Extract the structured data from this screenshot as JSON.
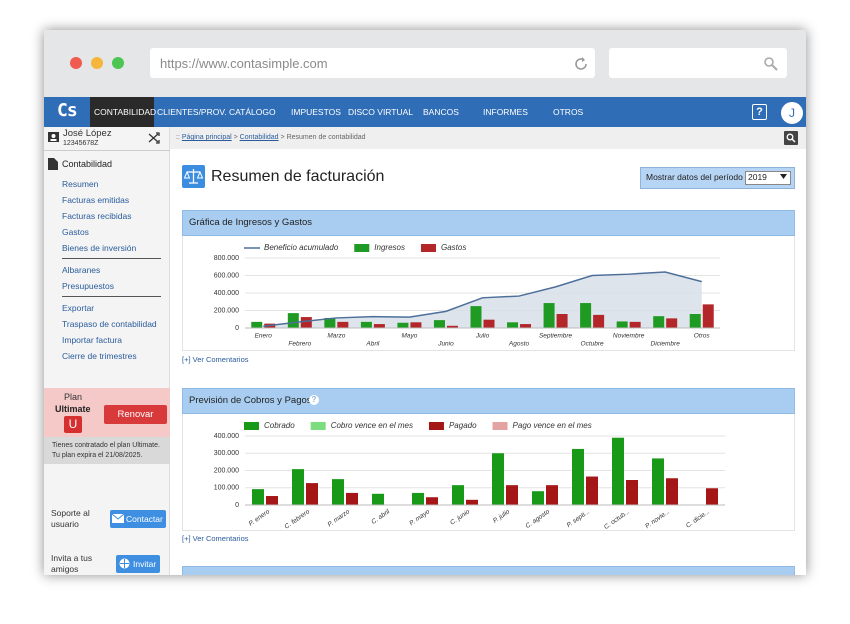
{
  "browser": {
    "url": "https://www.contasimple.com"
  },
  "nav": {
    "logo": "Cs",
    "items": [
      "CONTABILIDAD",
      "CLIENTES/PROV.",
      "CATÁLOGO",
      "IMPUESTOS",
      "DISCO VIRTUAL",
      "BANCOS",
      "INFORMES",
      "OTROS"
    ],
    "help": "?",
    "avatar": "J"
  },
  "sidebar": {
    "user": {
      "name": "José López",
      "id": "12345678Z"
    },
    "section": "Contabilidad",
    "groups": [
      [
        "Resumen",
        "Facturas emitidas",
        "Facturas recibidas",
        "Gastos",
        "Bienes de inversión"
      ],
      [
        "Albaranes",
        "Presupuestos"
      ],
      [
        "Exportar",
        "Traspaso de contabilidad",
        "Importar factura",
        "Cierre de trimestres"
      ]
    ],
    "plan": {
      "label": "Plan",
      "name": "Ultimate",
      "badge": "U",
      "button": "Renovar",
      "notice": [
        "Tienes contratado el plan Ultimate.",
        "Tu plan expira el 21/08/2025."
      ]
    },
    "support": {
      "text": "Soporte al usuario",
      "button": "Contactar"
    },
    "invite": {
      "text": "Invita a tus amigos",
      "button": "Invitar"
    }
  },
  "breadcrumb": {
    "prefix": "::",
    "separator": ">",
    "items": [
      "Página principal",
      "Contabilidad",
      "Resumen de contabilidad"
    ]
  },
  "header": {
    "title": "Resumen de facturación",
    "period_label": "Mostrar datos del período",
    "period": "2019"
  },
  "panels": [
    {
      "title": "Gráfica de Ingresos y Gastos",
      "comments": "[+] Ver Comentarios"
    },
    {
      "title": "Previsión de Cobros y Pagos",
      "help": "?",
      "comments": "[+] Ver Comentarios"
    }
  ],
  "chart_data": [
    {
      "type": "bar",
      "categories": [
        "Enero",
        "Febrero",
        "Marzo",
        "Abril",
        "Mayo",
        "Junio",
        "Julio",
        "Agosto",
        "Septiembre",
        "Octubre",
        "Noviembre",
        "Diciembre",
        "Otros"
      ],
      "series": [
        {
          "name": "Beneficio acumulado",
          "type": "line",
          "color": "#4d6f99",
          "values": [
            20000,
            70000,
            115000,
            130000,
            125000,
            190000,
            345000,
            365000,
            470000,
            600000,
            615000,
            640000,
            530000
          ]
        },
        {
          "name": "Ingresos",
          "color": "#1f9a22",
          "values": [
            70000,
            170000,
            115000,
            70000,
            60000,
            90000,
            250000,
            65000,
            285000,
            285000,
            75000,
            135000,
            160000
          ]
        },
        {
          "name": "Gastos",
          "color": "#b3262a",
          "values": [
            50000,
            125000,
            70000,
            45000,
            65000,
            25000,
            95000,
            45000,
            160000,
            150000,
            70000,
            110000,
            270000
          ]
        }
      ],
      "ylim": [
        0,
        800000
      ],
      "yticks": [
        0,
        {
          "value": 200000,
          "label": "200.000"
        },
        {
          "value": 400000,
          "label": "400.000"
        },
        {
          "value": 600000,
          "label": "600.000"
        },
        {
          "value": 800000,
          "label": "800.000"
        }
      ],
      "grid": true
    },
    {
      "type": "bar",
      "categories": [
        "P. enero",
        "C. febrero",
        "P. marzo",
        "C. abril",
        "P. mayo",
        "C. junio",
        "P. julio",
        "C. agosto",
        "P. septi...",
        "C. octub...",
        "P. novie...",
        "C. dicie..."
      ],
      "series": [
        {
          "name": "Cobrado",
          "color": "#189a18",
          "values": [
            92000,
            208000,
            150000,
            65000,
            70000,
            115000,
            300000,
            80000,
            325000,
            390000,
            270000,
            null
          ]
        },
        {
          "name": "Cobro vence en el mes",
          "color": "#7ddc7d",
          "values": [
            null,
            null,
            null,
            null,
            null,
            null,
            null,
            null,
            null,
            null,
            null,
            null
          ]
        },
        {
          "name": "Pagado",
          "color": "#a51616",
          "values": [
            52000,
            127000,
            70000,
            null,
            45000,
            30000,
            115000,
            115000,
            165000,
            145000,
            155000,
            97000
          ]
        },
        {
          "name": "Pago vence en el mes",
          "color": "#e4a3a3",
          "values": [
            null,
            null,
            null,
            null,
            null,
            null,
            null,
            null,
            null,
            null,
            null,
            null
          ]
        }
      ],
      "ylim": [
        0,
        400000
      ],
      "yticks": [
        0,
        {
          "value": 100000,
          "label": "100.000"
        },
        {
          "value": 200000,
          "label": "200.000"
        },
        {
          "value": 300000,
          "label": "300.000"
        },
        {
          "value": 400000,
          "label": "400.000"
        }
      ],
      "grid": true
    }
  ]
}
